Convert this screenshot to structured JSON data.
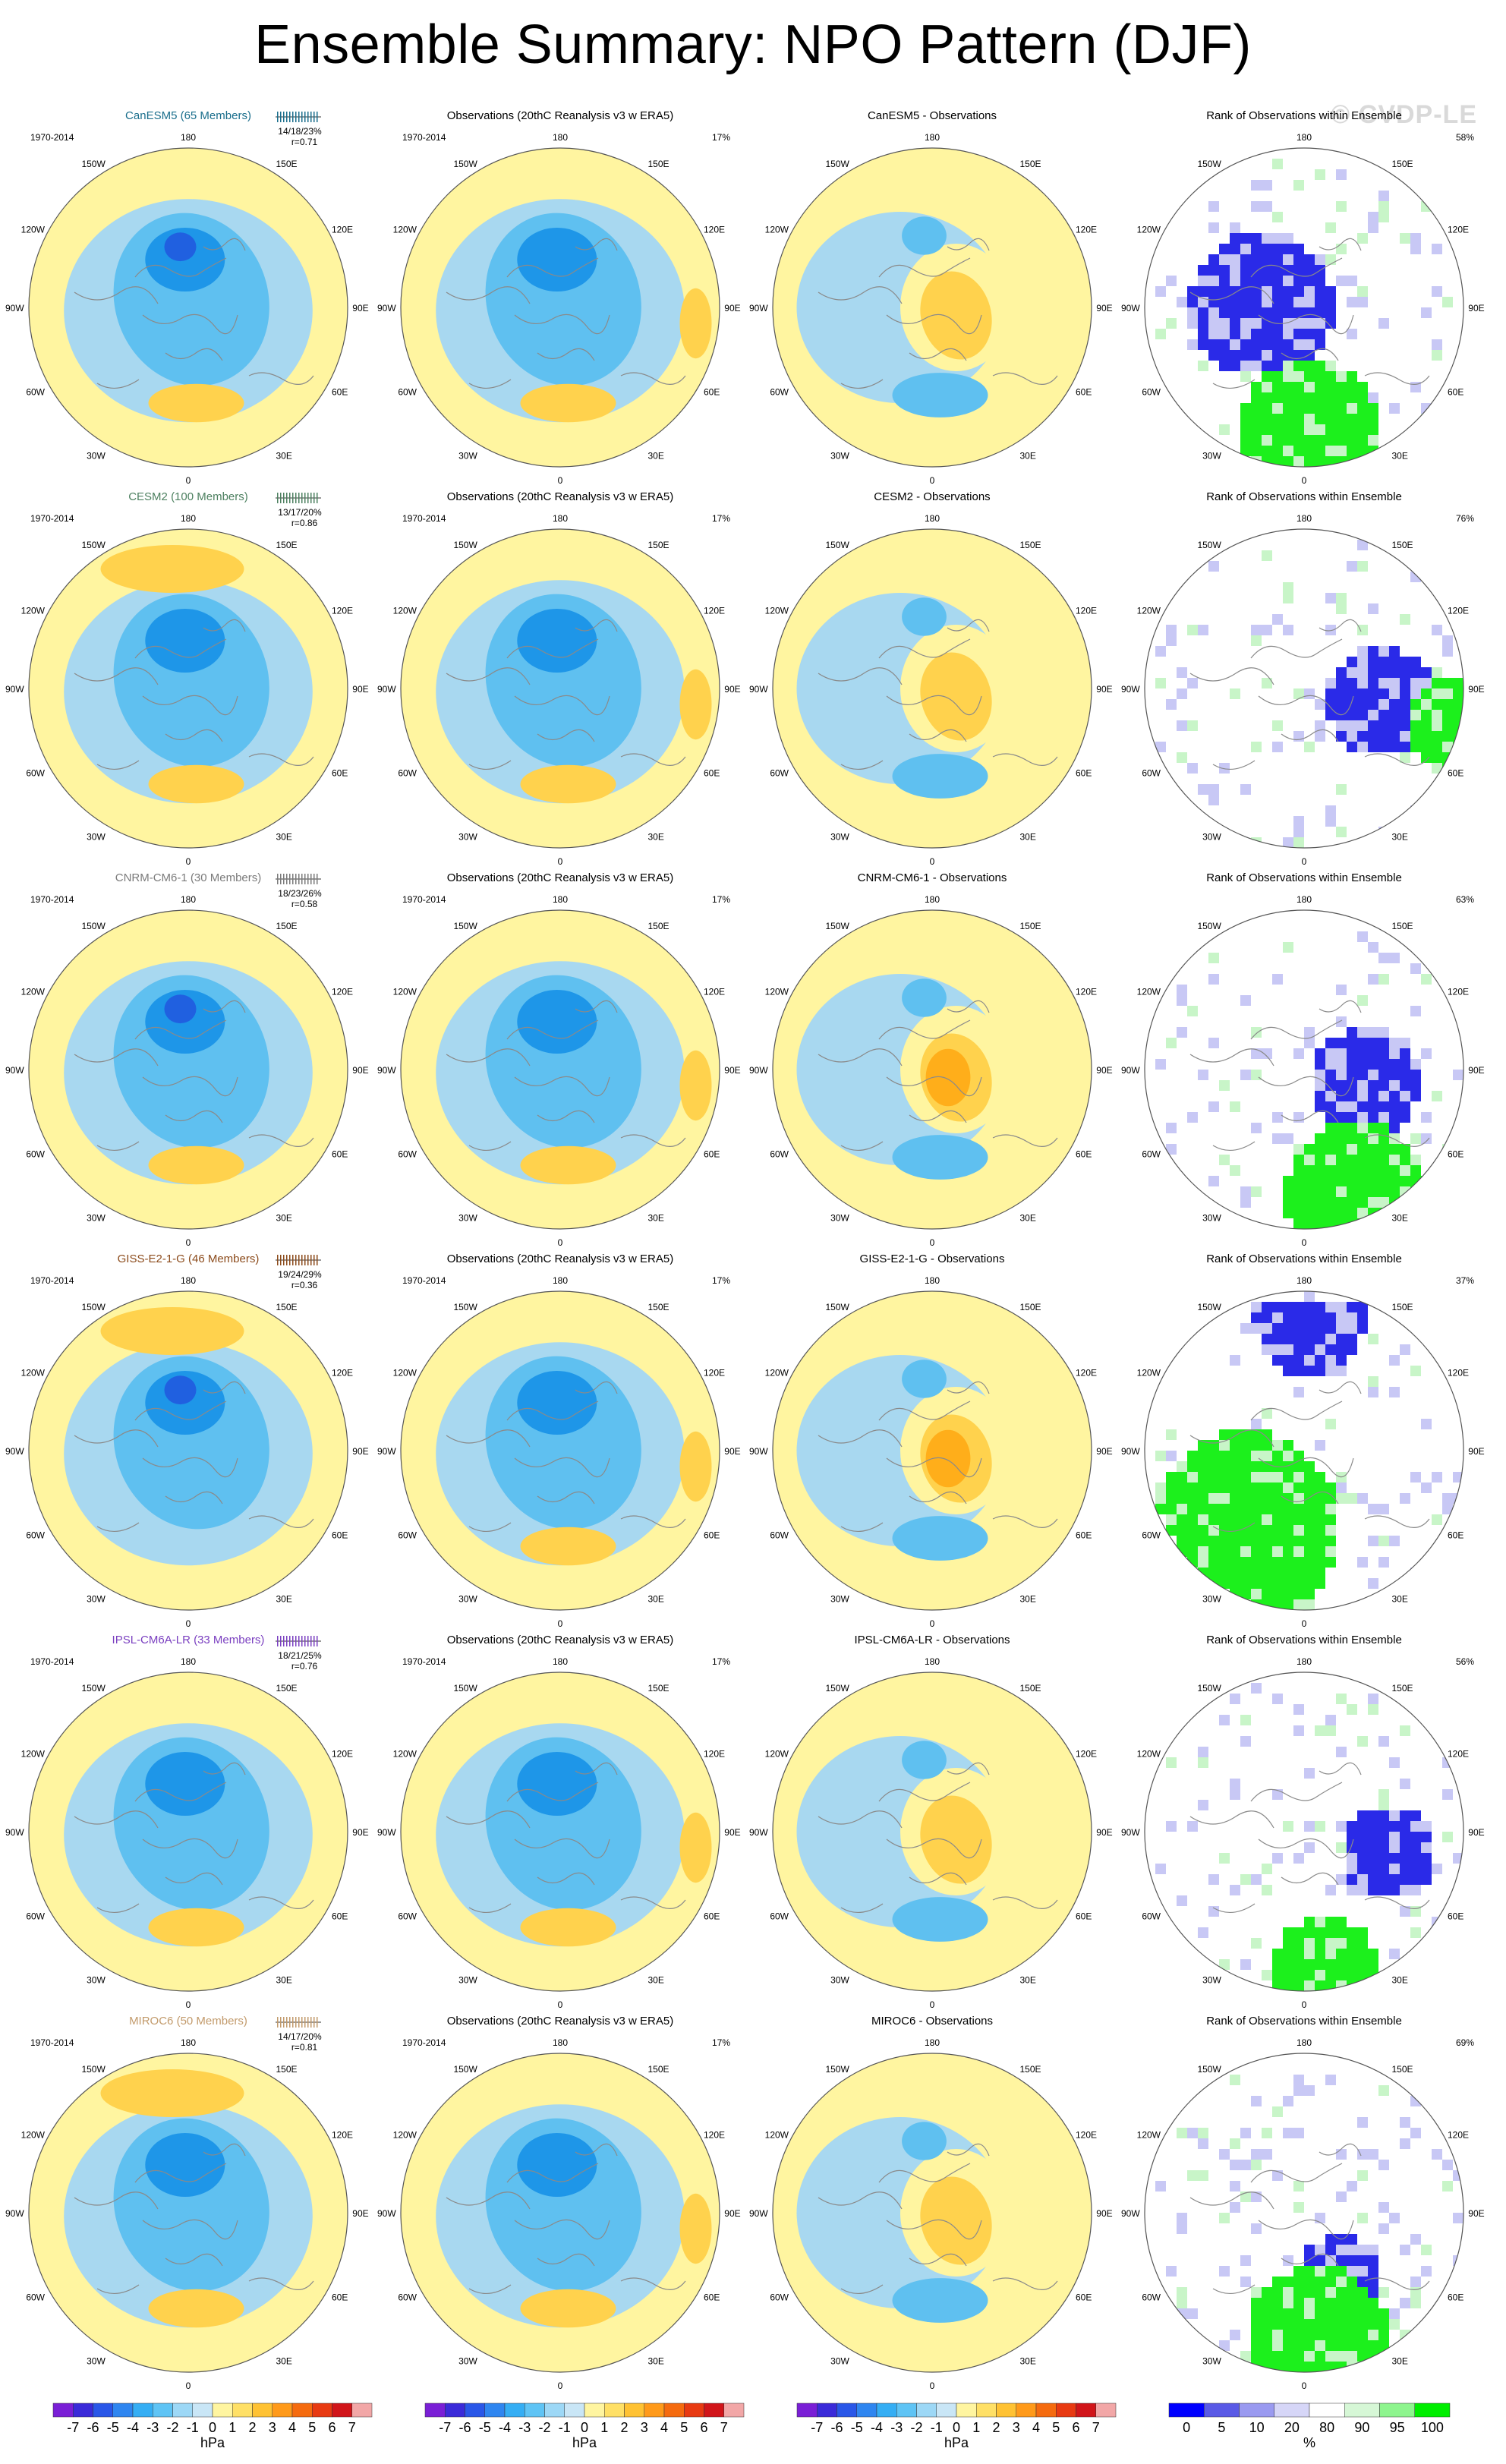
{
  "title": "Ensemble Summary: NPO Pattern (DJF)",
  "watermark": "© CVDP-LE",
  "period": "1970-2014",
  "obs_title": "Observations (20thC Reanalysis v3 w ERA5)",
  "obs_pct": "17%",
  "rank_title": "Rank of Observations within Ensemble",
  "lon_labels": {
    "top": "180",
    "bottom": "0",
    "ul": "150W",
    "ur": "150E",
    "l1": "120W",
    "r1": "120E",
    "l2": "90W",
    "r2": "90E",
    "l3": "60W",
    "r3": "60E",
    "bl": "30W",
    "br": "30E"
  },
  "rows": [
    {
      "model": "CanESM5 (65 Members)",
      "model_color": "#1a6e8c",
      "stats": "14/18/23%",
      "r": "r=0.71",
      "diff_title": "CanESM5 - Observations",
      "rank_pct": "58%"
    },
    {
      "model": "CESM2 (100 Members)",
      "model_color": "#4d8060",
      "stats": "13/17/20%",
      "r": "r=0.86",
      "diff_title": "CESM2 - Observations",
      "rank_pct": "76%"
    },
    {
      "model": "CNRM-CM6-1 (30 Members)",
      "model_color": "#7a7a7a",
      "stats": "18/23/26%",
      "r": "r=0.58",
      "diff_title": "CNRM-CM6-1 - Observations",
      "rank_pct": "63%"
    },
    {
      "model": "GISS-E2-1-G (46 Members)",
      "model_color": "#8b4a1a",
      "stats": "19/24/29%",
      "r": "r=0.36",
      "diff_title": "GISS-E2-1-G - Observations",
      "rank_pct": "37%"
    },
    {
      "model": "IPSL-CM6A-LR (33 Members)",
      "model_color": "#7a3fc0",
      "stats": "18/21/25%",
      "r": "r=0.76",
      "diff_title": "IPSL-CM6A-LR - Observations",
      "rank_pct": "56%"
    },
    {
      "model": "MIROC6 (50 Members)",
      "model_color": "#c29a6b",
      "stats": "14/17/20%",
      "r": "r=0.81",
      "diff_title": "MIROC6 - Observations",
      "rank_pct": "69%"
    }
  ],
  "colorbar_hpa": {
    "labels": [
      "-7",
      "-6",
      "-5",
      "-4",
      "-3",
      "-2",
      "-1",
      "0",
      "1",
      "2",
      "3",
      "4",
      "5",
      "6",
      "7"
    ],
    "unit": "hPa",
    "colors": [
      "#7a1fd6",
      "#3b2bd9",
      "#2a57e8",
      "#2f86f0",
      "#35aef4",
      "#5fc4f5",
      "#9dd8f6",
      "#c9e6f6",
      "#fff5a0",
      "#ffe066",
      "#ffc233",
      "#ff9a1a",
      "#f56b0f",
      "#e83a12",
      "#d1151a",
      "#f2a7a7"
    ]
  },
  "colorbar_rank": {
    "labels": [
      "0",
      "5",
      "10",
      "20",
      "80",
      "90",
      "95",
      "100"
    ],
    "unit": "%",
    "colors": [
      "#0000ff",
      "#5a5ae6",
      "#9a9af0",
      "#d6d6f7",
      "#ffffff",
      "#d6f7d6",
      "#8ef58e",
      "#00ee00"
    ]
  },
  "colors": {
    "pos_light": "#fff5a0",
    "pos_mid": "#ffd24d",
    "pos_strong": "#ffae1a",
    "neg_light": "#a8d8f0",
    "neg_mid": "#5fc0f0",
    "neg_strong": "#1e96e8",
    "neg_deep": "#2060e0",
    "rank_blue": "#2a2ae8",
    "rank_lightblue": "#c8c8f5",
    "rank_green": "#1cf01c",
    "rank_lightgreen": "#c8f5c8"
  }
}
